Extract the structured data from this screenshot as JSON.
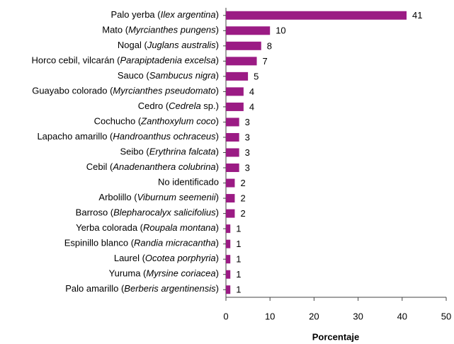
{
  "chart_data": {
    "type": "barh",
    "x_label": "Porcentaje",
    "categories": [
      "Palo yerba (Ilex argentina)",
      "Mato (Myrcianthes pungens)",
      "Nogal (Juglans australis)",
      "Horco cebil, vilcarán (Parapiptadenia excelsa)",
      "Sauco (Sambucus nigra)",
      "Guayabo colorado (Myrcianthes pseudomato)",
      "Cedro (Cedrela sp.)",
      "Cochucho (Zanthoxylum coco)",
      "Lapacho amarillo (Handroanthus ochraceus)",
      "Seibo (Erythrina falcata)",
      "Cebil (Anadenanthera colubrina)",
      "No identificado",
      "Arbolillo (Viburnum seemenii)",
      "Barroso (Blepharocalyx salicifolius)",
      "Yerba colorada (Roupala montana)",
      "Espinillo blanco (Randia micracantha)",
      "Laurel (Ocotea porphyria)",
      "Yuruma (Myrsine coriacea)",
      "Palo amarillo (Berberis argentinensis)"
    ],
    "values": [
      41,
      10,
      8,
      7,
      5,
      4,
      4,
      3,
      3,
      3,
      3,
      2,
      2,
      2,
      1,
      1,
      1,
      1,
      1
    ],
    "color": "#9b1b84",
    "xlim": [
      0,
      50
    ],
    "xticks": [
      0,
      10,
      20,
      30,
      40,
      50
    ]
  }
}
